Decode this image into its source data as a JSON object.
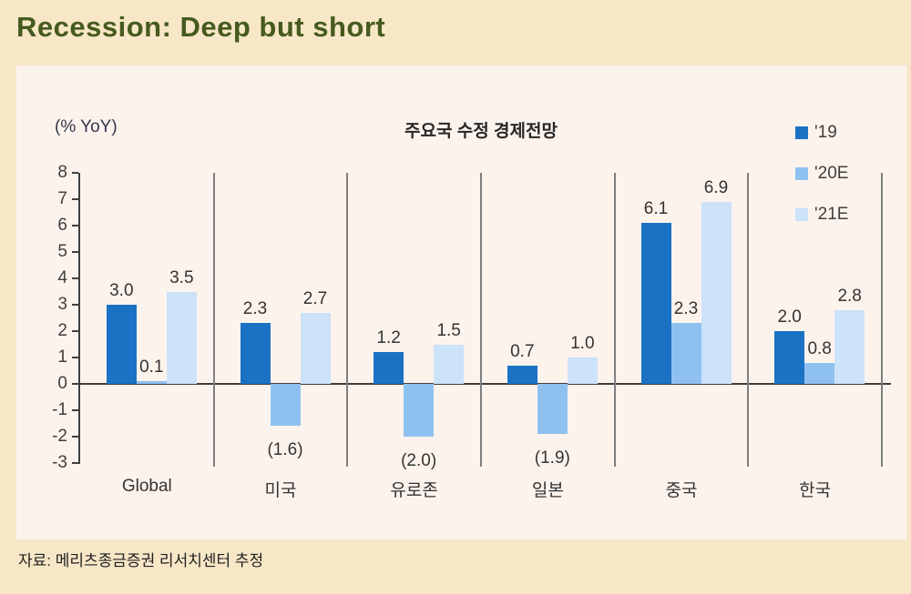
{
  "page": {
    "title": "Recession: Deep but short",
    "source": "자료: 메리츠종금증권 리서치센터 추정"
  },
  "chart_data": {
    "type": "bar",
    "title": "주요국 수정 경제전망",
    "unit_label": "(% YoY)",
    "categories": [
      "Global",
      "미국",
      "유로존",
      "일본",
      "중국",
      "한국"
    ],
    "series": [
      {
        "name": "'19",
        "color": "#1B72C4",
        "values": [
          3.0,
          2.3,
          1.2,
          0.7,
          6.1,
          2.0
        ]
      },
      {
        "name": "'20E",
        "color": "#8FC1F0",
        "values": [
          0.1,
          -1.6,
          -2.0,
          -1.9,
          2.3,
          0.8
        ]
      },
      {
        "name": "'21E",
        "color": "#CBE2F8",
        "values": [
          3.5,
          2.7,
          1.5,
          1.0,
          6.9,
          2.8
        ]
      }
    ],
    "ylim": [
      -3,
      8
    ],
    "ytick_step": 1,
    "negative_label_format": "parentheses",
    "legend_position": "top-right",
    "grid": false,
    "group_dividers": true
  },
  "colors": {
    "page_background": "#F7E7C7",
    "panel_background": "#FDF3ED",
    "headline_green": "#465A1E",
    "axis": "#3F3F3F",
    "divider": "#7F7F7F"
  }
}
